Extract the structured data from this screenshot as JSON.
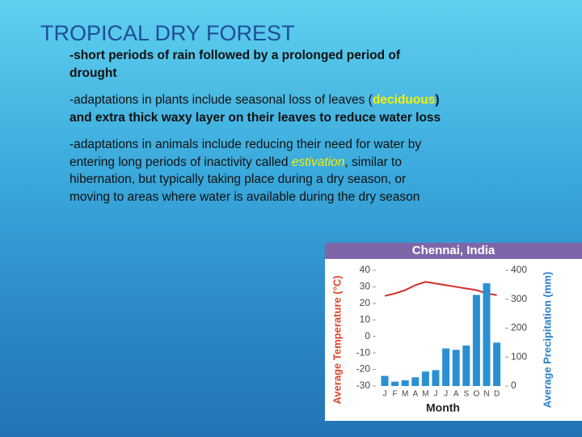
{
  "title": "TROPICAL DRY FOREST",
  "paragraphs": [
    [
      "-short periods of rain followed by a prolonged period of drought"
    ],
    [
      "-adaptations in plants include seasonal loss of leaves (",
      "deciduous",
      ") and extra thick waxy layer on their leaves to reduce water loss"
    ],
    [
      "-adaptations in animals include reducing their need for water by entering long periods of inactivity called ",
      "estivation",
      ", similar to hibernation, but typically taking place during a dry season, or moving to areas where water is available during the dry season"
    ]
  ],
  "climate_chart": {
    "type": "bar-line",
    "title": "Chennai, India",
    "x_label": "Month",
    "y_label": "Average Temperature (°C)",
    "y2_label": "Average Precipitation (mm)",
    "categories": [
      "J",
      "F",
      "M",
      "A",
      "M",
      "J",
      "J",
      "A",
      "S",
      "O",
      "N",
      "D"
    ],
    "ylim": [
      -30,
      40
    ],
    "yticks": [
      40,
      30,
      20,
      10,
      0,
      -10,
      -20,
      -30
    ],
    "y2lim": [
      0,
      400
    ],
    "y2ticks": [
      400,
      300,
      200,
      100,
      0
    ],
    "series": [
      {
        "name": "Temperature",
        "color": "#d0322d",
        "values": [
          24.5,
          26,
          28,
          31,
          33,
          32,
          31,
          30,
          29,
          28,
          26,
          25
        ]
      },
      {
        "name": "Precipitation",
        "color": "#2a90d2",
        "axis": "y2",
        "values": [
          35,
          15,
          20,
          30,
          50,
          55,
          130,
          125,
          140,
          315,
          355,
          150
        ]
      }
    ]
  }
}
